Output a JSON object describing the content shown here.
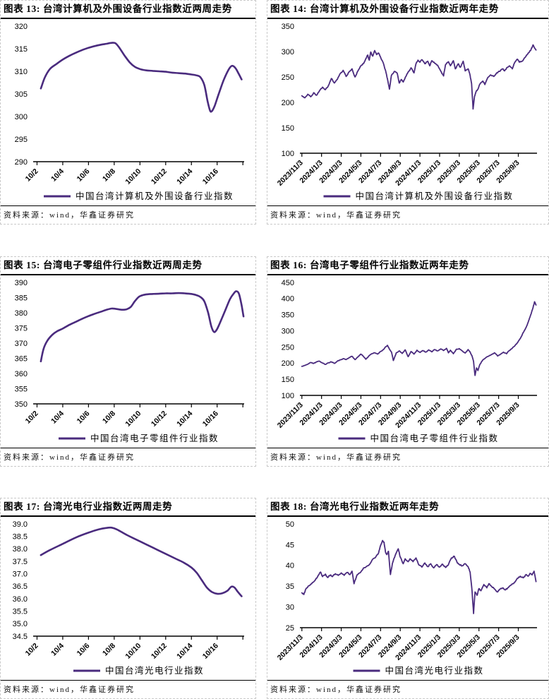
{
  "source_note": "资料来源：wind，华鑫证券研究",
  "line_color": "#4a2b7e",
  "chart_data": [
    {
      "type": "line",
      "title": "图表 13: 台湾计算机及外围设备行业指数近两周走势",
      "legend": "中国台湾计算机及外围设备行业指数",
      "source": "资料来源：wind，华鑫证券研究",
      "ylim": [
        290,
        320
      ],
      "ytick_labels": [
        "290",
        "295",
        "300",
        "305",
        "310",
        "315",
        "320"
      ],
      "xlim": [
        -0.3,
        16.1
      ],
      "xtick_positions": [
        0,
        2,
        4,
        6,
        8,
        10,
        12,
        14,
        16
      ],
      "xtick_labels": [
        "10/2",
        "10/4",
        "10/6",
        "10/8",
        "10/10",
        "10/12",
        "10/14",
        "10/16",
        ""
      ],
      "x": [
        0.3,
        0.6,
        1,
        1.5,
        2,
        2.5,
        3,
        3.5,
        4,
        4.5,
        5,
        5.4,
        5.8,
        6.1,
        6.4,
        6.8,
        7.2,
        7.6,
        8,
        8.5,
        9,
        9.5,
        10,
        10.5,
        11,
        11.5,
        12,
        12.4,
        12.7,
        13,
        13.25,
        13.45,
        13.6,
        13.8,
        14.1,
        14.5,
        14.9,
        15.15,
        15.4,
        15.65,
        15.9
      ],
      "y": [
        306.2,
        308.6,
        310.5,
        311.6,
        312.6,
        313.4,
        314.1,
        314.7,
        315.2,
        315.6,
        315.9,
        316.1,
        316.3,
        316.2,
        315.2,
        313.5,
        312.0,
        311.0,
        310.5,
        310.2,
        310.1,
        310.0,
        309.9,
        309.7,
        309.6,
        309.5,
        309.3,
        309.1,
        308.7,
        307.0,
        303.5,
        301.3,
        301.2,
        302.3,
        304.8,
        308.0,
        310.4,
        311.2,
        310.8,
        309.6,
        308.2
      ],
      "smooth": true,
      "noise": 0,
      "line_width": 2.6
    },
    {
      "type": "line",
      "title": "图表 14: 台湾计算机及外围设备行业指数近两年走势",
      "legend": "中国台湾计算机及外围设备行业指数",
      "source": "资料来源：wind，华鑫证券研究",
      "ylim": [
        100,
        350
      ],
      "ytick_labels": [
        "100",
        "150",
        "200",
        "250",
        "300",
        "350"
      ],
      "xlim": [
        -0.2,
        23.9
      ],
      "xtick_positions": [
        0,
        2,
        4,
        6,
        8,
        10,
        12,
        14,
        16,
        18,
        20,
        22
      ],
      "xtick_labels": [
        "2023/11/3",
        "2024/1/3",
        "2024/3/3",
        "2024/5/3",
        "2024/7/3",
        "2024/9/3",
        "2024/11/3",
        "2025/1/3",
        "2025/3/3",
        "2025/5/3",
        "2025/7/3",
        "2025/9/3"
      ],
      "x": [
        0,
        0.3,
        0.6,
        0.9,
        1.2,
        1.5,
        1.8,
        2.1,
        2.4,
        2.7,
        3.0,
        3.3,
        3.6,
        3.9,
        4.2,
        4.5,
        4.8,
        5.1,
        5.4,
        5.7,
        6.0,
        6.3,
        6.5,
        6.7,
        6.85,
        7.0,
        7.2,
        7.4,
        7.6,
        7.8,
        8.0,
        8.2,
        8.5,
        8.7,
        8.9,
        9.1,
        9.4,
        9.7,
        9.9,
        10.1,
        10.3,
        10.6,
        10.9,
        11.1,
        11.4,
        11.6,
        11.8,
        12.0,
        12.2,
        12.5,
        12.8,
        13.0,
        13.2,
        13.5,
        13.8,
        14.1,
        14.4,
        14.6,
        14.9,
        15.1,
        15.4,
        15.6,
        15.9,
        16.1,
        16.4,
        16.6,
        16.9,
        17.1,
        17.25,
        17.4,
        17.55,
        17.7,
        17.9,
        18.1,
        18.4,
        18.6,
        18.9,
        19.2,
        19.5,
        19.8,
        20.1,
        20.4,
        20.6,
        20.9,
        21.1,
        21.4,
        21.6,
        21.9,
        22.1,
        22.4,
        22.6,
        22.9,
        23.1,
        23.3,
        23.5,
        23.65,
        23.8
      ],
      "y": [
        213,
        209,
        216,
        211,
        219,
        214,
        223,
        230,
        225,
        233,
        247,
        238,
        245,
        257,
        263,
        251,
        260,
        266,
        250,
        262,
        272,
        277,
        286,
        293,
        283,
        299,
        291,
        302,
        294,
        297,
        289,
        281,
        263,
        246,
        226,
        253,
        261,
        257,
        238,
        245,
        240,
        252,
        262,
        268,
        258,
        276,
        283,
        279,
        284,
        276,
        281,
        272,
        282,
        277,
        273,
        262,
        252,
        274,
        280,
        272,
        282,
        266,
        276,
        269,
        281,
        262,
        266,
        253,
        237,
        187,
        212,
        221,
        226,
        236,
        242,
        235,
        249,
        254,
        251,
        258,
        261,
        266,
        262,
        269,
        272,
        266,
        277,
        285,
        279,
        281,
        287,
        294,
        298,
        304,
        313,
        307,
        303
      ],
      "smooth": false,
      "noise": 2.0,
      "line_width": 1.8
    },
    {
      "type": "line",
      "title": "图表 15: 台湾电子零组件行业指数近两周走势",
      "legend": "中国台湾电子零组件行业指数",
      "source": "资料来源：wind，华鑫证券研究",
      "ylim": [
        350,
        390
      ],
      "ytick_labels": [
        "350",
        "355",
        "360",
        "365",
        "370",
        "375",
        "380",
        "385",
        "390"
      ],
      "xlim": [
        -0.3,
        16.1
      ],
      "xtick_positions": [
        0,
        2,
        4,
        6,
        8,
        10,
        12,
        14,
        16
      ],
      "xtick_labels": [
        "10/2",
        "10/4",
        "10/6",
        "10/8",
        "10/10",
        "10/12",
        "10/14",
        "10/16",
        ""
      ],
      "x": [
        0.3,
        0.5,
        0.8,
        1.2,
        1.6,
        2,
        2.5,
        3,
        3.5,
        4,
        4.5,
        5,
        5.4,
        5.8,
        6.1,
        6.4,
        6.7,
        7,
        7.3,
        7.6,
        7.9,
        8.2,
        8.6,
        9,
        9.5,
        10,
        10.5,
        11,
        11.5,
        12,
        12.4,
        12.7,
        13,
        13.3,
        13.55,
        13.75,
        13.95,
        14.2,
        14.6,
        15,
        15.3,
        15.5,
        15.7,
        15.9,
        16.05
      ],
      "y": [
        364.0,
        368.0,
        370.8,
        372.8,
        374.0,
        374.8,
        376.0,
        377.0,
        378.0,
        378.9,
        379.7,
        380.4,
        381.0,
        381.4,
        381.3,
        381.1,
        381.0,
        381.2,
        382.0,
        383.8,
        385.2,
        385.8,
        386.1,
        386.2,
        386.3,
        386.4,
        386.4,
        386.5,
        386.4,
        386.2,
        385.8,
        385.2,
        383.8,
        380.0,
        375.5,
        373.7,
        374.3,
        376.5,
        380.5,
        384.5,
        386.4,
        387.1,
        386.2,
        382.5,
        378.8
      ],
      "smooth": true,
      "noise": 0,
      "line_width": 2.6
    },
    {
      "type": "line",
      "title": "图表 16: 台湾电子零组件行业指数近两年走势",
      "legend": "中国台湾电子零组件行业指数",
      "source": "资料来源：wind，华鑫证券研究",
      "ylim": [
        100,
        450
      ],
      "ytick_labels": [
        "100",
        "150",
        "200",
        "250",
        "300",
        "350",
        "400",
        "450"
      ],
      "xlim": [
        -0.2,
        23.9
      ],
      "xtick_positions": [
        0,
        2,
        4,
        6,
        8,
        10,
        12,
        14,
        16,
        18,
        20,
        22
      ],
      "xtick_labels": [
        "2023/11/3",
        "2024/1/3",
        "2024/3/3",
        "2024/5/3",
        "2024/7/3",
        "2024/9/3",
        "2024/11/3",
        "2025/1/3",
        "2025/3/3",
        "2025/5/3",
        "2025/7/3",
        "2025/9/3"
      ],
      "x": [
        0,
        0.3,
        0.6,
        0.9,
        1.2,
        1.5,
        1.8,
        2.1,
        2.4,
        2.7,
        3.0,
        3.3,
        3.6,
        3.9,
        4.2,
        4.5,
        4.8,
        5.1,
        5.4,
        5.7,
        6.0,
        6.2,
        6.5,
        6.8,
        7.1,
        7.4,
        7.7,
        8.0,
        8.3,
        8.5,
        8.7,
        8.9,
        9.1,
        9.3,
        9.6,
        9.9,
        10.2,
        10.5,
        10.8,
        11.1,
        11.4,
        11.7,
        12.0,
        12.3,
        12.6,
        12.9,
        13.2,
        13.5,
        13.8,
        14.1,
        14.4,
        14.7,
        14.9,
        15.1,
        15.4,
        15.7,
        16.0,
        16.3,
        16.6,
        16.9,
        17.1,
        17.3,
        17.45,
        17.6,
        17.75,
        17.9,
        18.1,
        18.4,
        18.7,
        19.0,
        19.3,
        19.6,
        19.9,
        20.2,
        20.5,
        20.8,
        21.0,
        21.3,
        21.6,
        21.9,
        22.1,
        22.3,
        22.5,
        22.7,
        22.9,
        23.1,
        23.3,
        23.5,
        23.65,
        23.8
      ],
      "y": [
        190,
        193,
        197,
        202,
        199,
        204,
        206,
        200,
        196,
        201,
        204,
        199,
        206,
        210,
        214,
        211,
        217,
        221,
        211,
        219,
        228,
        223,
        212,
        222,
        229,
        232,
        228,
        236,
        242,
        250,
        255,
        243,
        235,
        208,
        232,
        238,
        230,
        241,
        220,
        236,
        228,
        240,
        233,
        239,
        234,
        241,
        235,
        242,
        238,
        244,
        239,
        246,
        232,
        240,
        229,
        243,
        245,
        238,
        231,
        242,
        234,
        222,
        205,
        162,
        185,
        177,
        196,
        210,
        217,
        222,
        227,
        232,
        222,
        228,
        234,
        229,
        237,
        244,
        252,
        263,
        272,
        282,
        295,
        305,
        318,
        335,
        352,
        372,
        390,
        380
      ],
      "smooth": false,
      "noise": 1.8,
      "line_width": 1.8
    },
    {
      "type": "line",
      "title": "图表 17: 台湾光电行业指数近两周走势",
      "legend": "中国台湾光电行业指数",
      "source": "资料来源：wind，华鑫证券研究",
      "ylim": [
        34.5,
        39.0
      ],
      "ytick_labels": [
        "34.5",
        "35.0",
        "35.5",
        "36.0",
        "36.5",
        "37.0",
        "37.5",
        "38.0",
        "38.5",
        "39.0"
      ],
      "xlim": [
        -0.3,
        16.1
      ],
      "xtick_positions": [
        0,
        2,
        4,
        6,
        8,
        10,
        12,
        14,
        16
      ],
      "xtick_labels": [
        "10/2",
        "10/4",
        "10/6",
        "10/8",
        "10/10",
        "10/12",
        "10/14",
        "10/16",
        ""
      ],
      "x": [
        0.3,
        1,
        2,
        3,
        4,
        4.8,
        5.4,
        5.8,
        6.2,
        7,
        8,
        9,
        10,
        10.8,
        11.4,
        12,
        12.4,
        12.8,
        13.2,
        13.6,
        14,
        14.4,
        14.8,
        15.1,
        15.35,
        15.6,
        15.9
      ],
      "y": [
        37.75,
        37.95,
        38.2,
        38.45,
        38.65,
        38.78,
        38.84,
        38.85,
        38.78,
        38.55,
        38.3,
        38.05,
        37.8,
        37.6,
        37.45,
        37.25,
        37.05,
        36.75,
        36.45,
        36.27,
        36.2,
        36.22,
        36.32,
        36.48,
        36.45,
        36.28,
        36.1
      ],
      "smooth": true,
      "noise": 0,
      "line_width": 2.6
    },
    {
      "type": "line",
      "title": "图表 18: 台湾光电行业指数近两年走势",
      "legend": "中国台湾光电行业指数",
      "source": "资料来源：wind，华鑫证券研究",
      "ylim": [
        25,
        50
      ],
      "ytick_labels": [
        "25",
        "30",
        "35",
        "40",
        "45",
        "50"
      ],
      "xlim": [
        -0.2,
        23.9
      ],
      "xtick_positions": [
        0,
        2,
        4,
        6,
        8,
        10,
        12,
        14,
        16,
        18,
        20,
        22
      ],
      "xtick_labels": [
        "2023/11/3",
        "2024/1/3",
        "2024/3/3",
        "2024/5/3",
        "2024/7/3",
        "2024/9/3",
        "2024/11/3",
        "2025/1/3",
        "2025/3/3",
        "2025/5/3",
        "2025/7/3",
        "2025/9/3"
      ],
      "x": [
        0,
        0.2,
        0.4,
        0.7,
        1.0,
        1.3,
        1.6,
        1.9,
        2.1,
        2.4,
        2.6,
        2.9,
        3.1,
        3.4,
        3.7,
        4.0,
        4.3,
        4.6,
        4.9,
        5.1,
        5.3,
        5.6,
        5.9,
        6.1,
        6.3,
        6.6,
        6.9,
        7.2,
        7.5,
        7.8,
        8.0,
        8.2,
        8.35,
        8.5,
        8.65,
        8.8,
        9.0,
        9.2,
        9.5,
        9.8,
        10.0,
        10.3,
        10.5,
        10.8,
        11.0,
        11.3,
        11.6,
        11.9,
        12.2,
        12.5,
        12.8,
        13.1,
        13.4,
        13.7,
        14.0,
        14.3,
        14.6,
        14.9,
        15.2,
        15.5,
        15.8,
        16.0,
        16.3,
        16.6,
        16.9,
        17.1,
        17.3,
        17.45,
        17.6,
        17.8,
        18.0,
        18.2,
        18.5,
        18.8,
        19.0,
        19.3,
        19.6,
        19.9,
        20.1,
        20.4,
        20.7,
        21.0,
        21.3,
        21.6,
        21.9,
        22.2,
        22.5,
        22.8,
        23.0,
        23.2,
        23.4,
        23.6,
        23.8
      ],
      "y": [
        33.4,
        33.0,
        34.3,
        35.1,
        35.6,
        36.3,
        37.3,
        38.4,
        37.3,
        37.9,
        37.1,
        37.7,
        37.3,
        38.0,
        37.6,
        38.2,
        37.6,
        38.3,
        37.8,
        38.6,
        35.6,
        37.7,
        38.2,
        38.8,
        39.4,
        39.8,
        40.3,
        41.5,
        42.0,
        43.0,
        44.8,
        46.0,
        45.6,
        43.2,
        42.6,
        43.4,
        37.8,
        40.5,
        42.5,
        44.0,
        42.0,
        40.4,
        41.6,
        40.9,
        41.6,
        40.9,
        41.8,
        40.1,
        39.6,
        40.6,
        39.7,
        40.4,
        39.4,
        40.2,
        39.6,
        40.3,
        39.5,
        40.2,
        41.8,
        42.2,
        40.6,
        40.2,
        39.9,
        40.4,
        39.7,
        38.4,
        33.8,
        28.4,
        33.6,
        32.8,
        34.4,
        33.9,
        35.4,
        34.6,
        35.6,
        34.9,
        34.3,
        33.6,
        34.2,
        34.6,
        34.1,
        34.7,
        35.3,
        35.9,
        36.9,
        37.4,
        37.0,
        37.8,
        37.4,
        38.1,
        37.7,
        38.6,
        36.1
      ],
      "smooth": false,
      "noise": 0.25,
      "line_width": 1.8
    }
  ]
}
